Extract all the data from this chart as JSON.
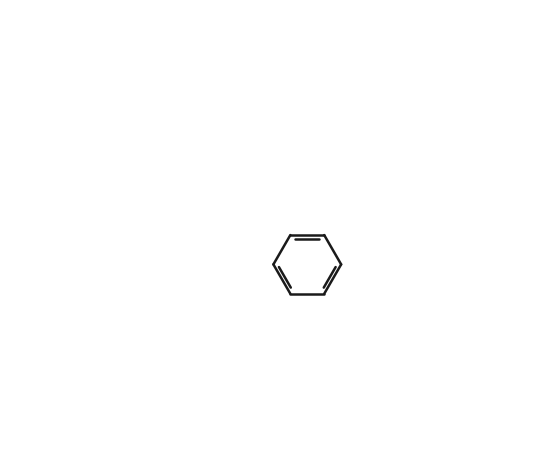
{
  "background_color": "#ffffff",
  "line_color": "#1a1a1a",
  "line_width": 1.8,
  "figsize": [
    5.5,
    4.58
  ],
  "dpi": 100
}
